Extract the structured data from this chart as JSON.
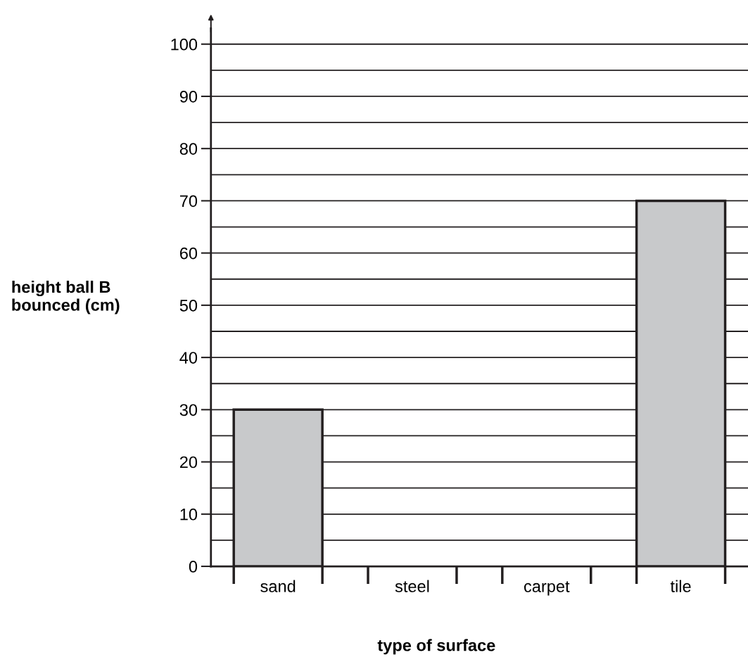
{
  "chart_data": {
    "type": "bar",
    "ylabel": "height ball B\nbounced (cm)",
    "xlabel": "type of surface",
    "categories": [
      "sand",
      "steel",
      "carpet",
      "tile"
    ],
    "values": [
      30,
      null,
      null,
      70
    ],
    "color": "#c8c9cb",
    "ylim": [
      0,
      103
    ],
    "yticks": [
      0,
      {
        "value": 5,
        "label": null
      },
      10,
      {
        "value": 15,
        "label": null
      },
      20,
      {
        "value": 25,
        "label": null
      },
      30,
      {
        "value": 35,
        "label": null
      },
      40,
      {
        "value": 45,
        "label": null
      },
      50,
      {
        "value": 55,
        "label": null
      },
      60,
      {
        "value": 65,
        "label": null
      },
      70,
      {
        "value": 75,
        "label": null
      },
      80,
      {
        "value": 85,
        "label": null
      },
      90,
      {
        "value": 95,
        "label": null
      },
      100
    ],
    "grid": true
  }
}
